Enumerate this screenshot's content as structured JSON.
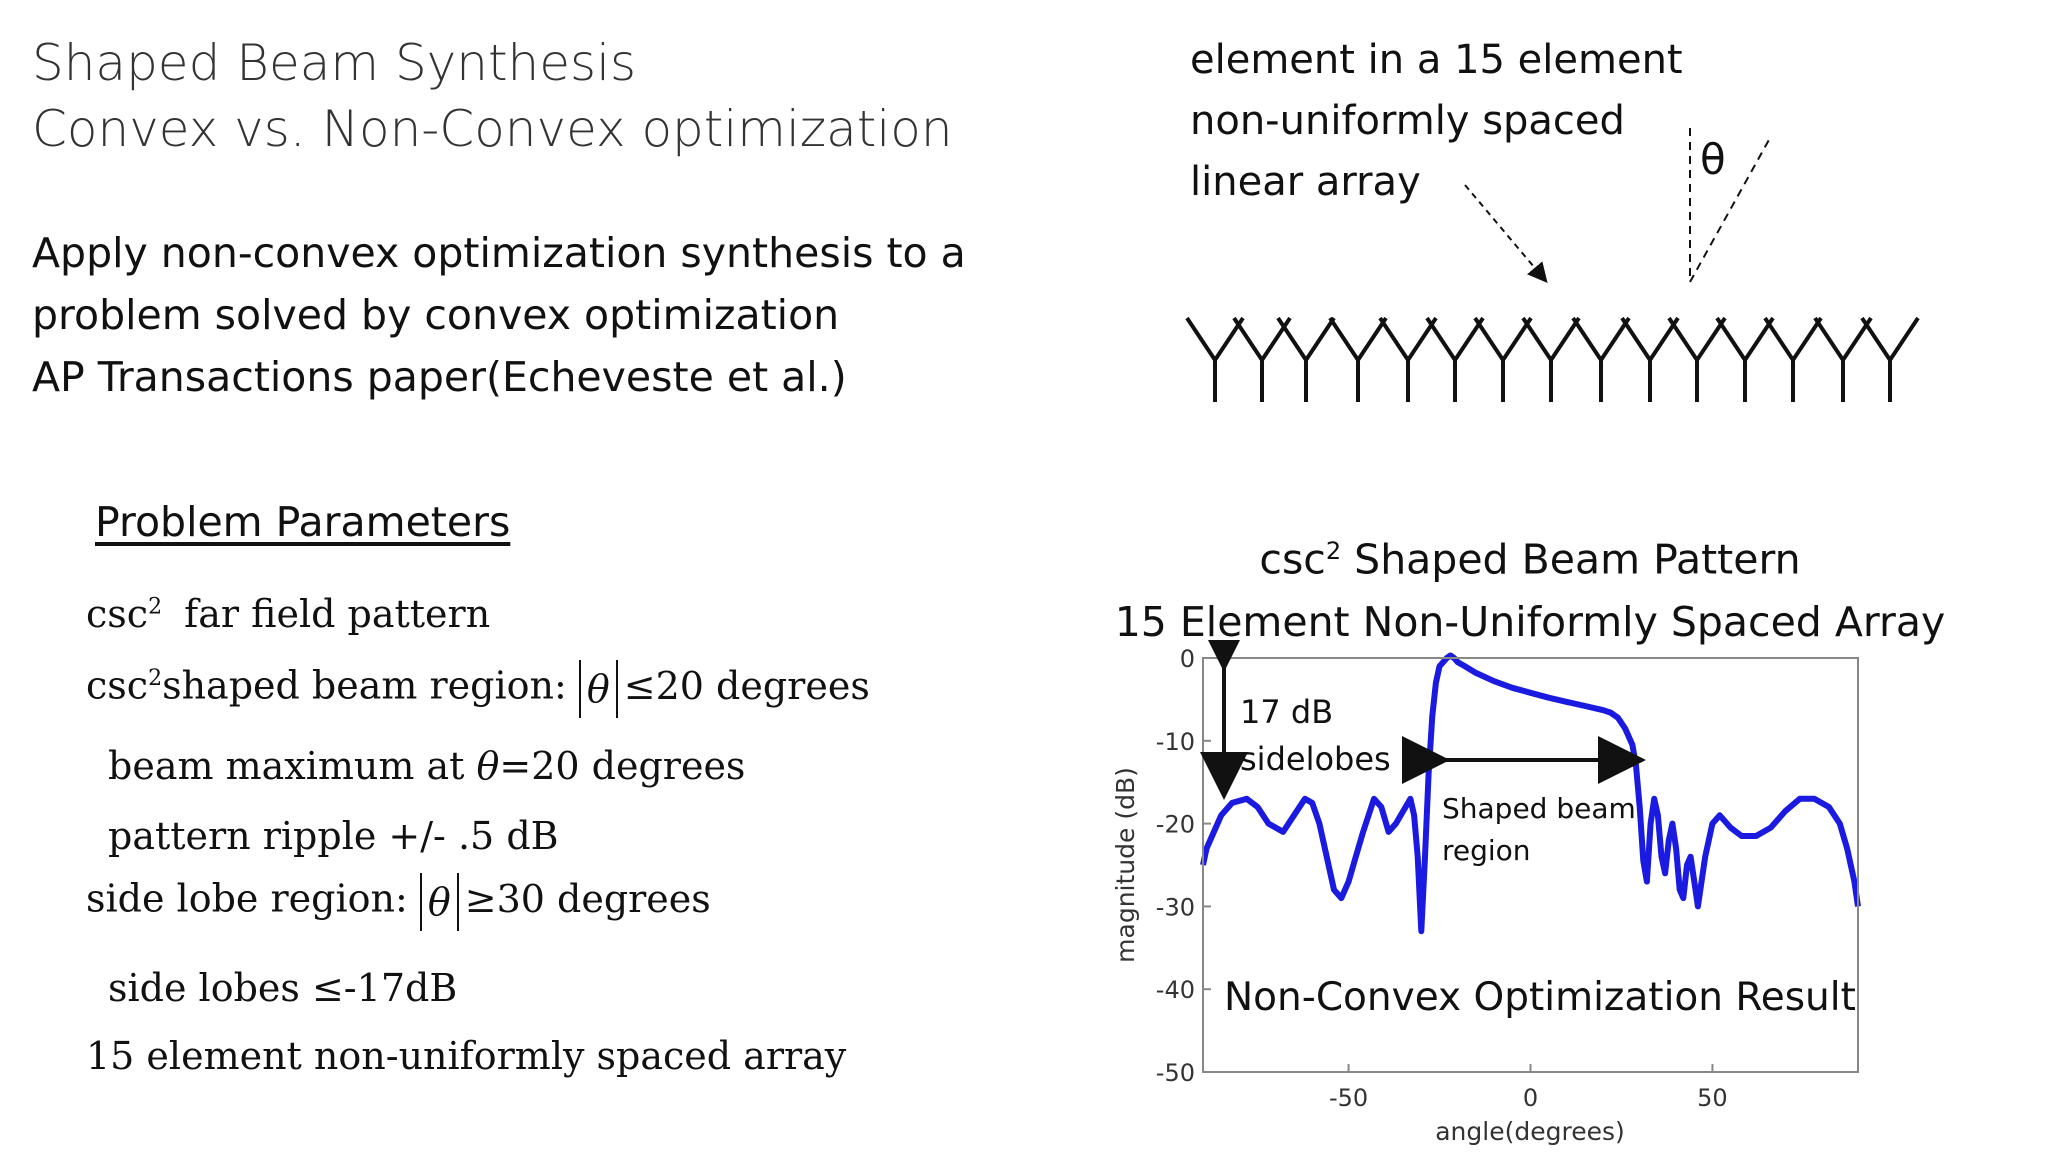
{
  "slide": {
    "title_line1": "Shaped Beam Synthesis",
    "title_line2": "Convex vs. Non-Convex optimization",
    "intro_line1": "Apply non-convex optimization synthesis to a",
    "intro_line2": "problem solved by convex optimization",
    "intro_line3": "AP Transactions paper(Echeveste et al.)"
  },
  "parameters": {
    "heading": "Problem Parameters",
    "items": {
      "p1_a": "csc",
      "p1_sup": "2",
      "p1_b": " far field pattern",
      "p2_a": "csc",
      "p2_sup": "2",
      "p2_b": "shaped beam region: ",
      "p2_var": "θ",
      "p2_c": "≤20 degrees",
      "p3_a": "beam maximum at ",
      "p3_var": "θ",
      "p3_b": "=20 degrees",
      "p4": "pattern ripple +/- .5 dB",
      "p5_a": "side lobe region: ",
      "p5_var": "θ",
      "p5_b": "≥30 degrees",
      "p6": "side lobes  ≤-17dB",
      "p7": "15 element non-uniformly spaced array"
    }
  },
  "array_diagram": {
    "label_line1": "element in a 15 element",
    "label_line2": "non-uniformly spaced",
    "label_line3": "linear array",
    "theta": "θ",
    "element_count": 15
  },
  "chart_title": {
    "line1_a": "csc",
    "line1_sup": "2",
    "line1_b": " Shaped Beam Pattern",
    "line2": "15 Element Non-Uniformly Spaced Array"
  },
  "chart_data": {
    "type": "line",
    "xlabel": "angle(degrees)",
    "ylabel": "magnitude (dB)",
    "xlim": [
      -90,
      90
    ],
    "ylim": [
      -50,
      0
    ],
    "xticks": [
      "-50",
      "0",
      "50"
    ],
    "yticks": [
      "0",
      "-10",
      "-20",
      "-30",
      "-40",
      "-50"
    ],
    "grid": false,
    "series_color": "#1a1ae0",
    "annotations": {
      "sidelobes_line1": "17 dB",
      "sidelobes_line2": "sidelobes",
      "region_line1": "Shaped beam",
      "region_line2": "region",
      "result": "Non-Convex Optimization Result"
    },
    "x": [
      -90,
      -89,
      -87,
      -85,
      -82,
      -78,
      -75,
      -72,
      -68,
      -65,
      -62,
      -60,
      -58,
      -56,
      -54,
      -52,
      -50,
      -48,
      -46,
      -43,
      -41,
      -39,
      -37,
      -35,
      -33,
      -32,
      -31,
      -30,
      -29,
      -28,
      -27,
      -26,
      -25,
      -24,
      -23,
      -22,
      -21,
      -20,
      -18,
      -15,
      -10,
      -5,
      0,
      5,
      10,
      15,
      20,
      22,
      24,
      26,
      28,
      29,
      30,
      31,
      32,
      33,
      34,
      35,
      36,
      37,
      38,
      39,
      40,
      41,
      42,
      43,
      44,
      45,
      46,
      48,
      50,
      52,
      55,
      58,
      62,
      66,
      70,
      74,
      78,
      82,
      85,
      87,
      89,
      90
    ],
    "y": [
      -25,
      -23,
      -21,
      -19,
      -17.5,
      -17,
      -18,
      -20,
      -21,
      -19,
      -17,
      -17.5,
      -20,
      -24,
      -28,
      -29,
      -27,
      -24,
      -21,
      -17,
      -18,
      -21,
      -20,
      -18.5,
      -17,
      -19,
      -24,
      -33,
      -24,
      -14,
      -7,
      -3,
      -1,
      -0.5,
      0,
      0.3,
      0,
      -0.5,
      -1,
      -1.8,
      -2.8,
      -3.6,
      -4.2,
      -4.8,
      -5.3,
      -5.8,
      -6.3,
      -6.6,
      -7.2,
      -8.5,
      -10.5,
      -13,
      -18,
      -24.5,
      -27,
      -20,
      -17,
      -19,
      -24,
      -26,
      -22,
      -20,
      -23,
      -28,
      -29,
      -25,
      -24,
      -27,
      -30,
      -24,
      -20,
      -19,
      -20.5,
      -21.5,
      -21.5,
      -20.5,
      -18.5,
      -17,
      -17,
      -18,
      -20,
      -23,
      -27,
      -30
    ]
  }
}
